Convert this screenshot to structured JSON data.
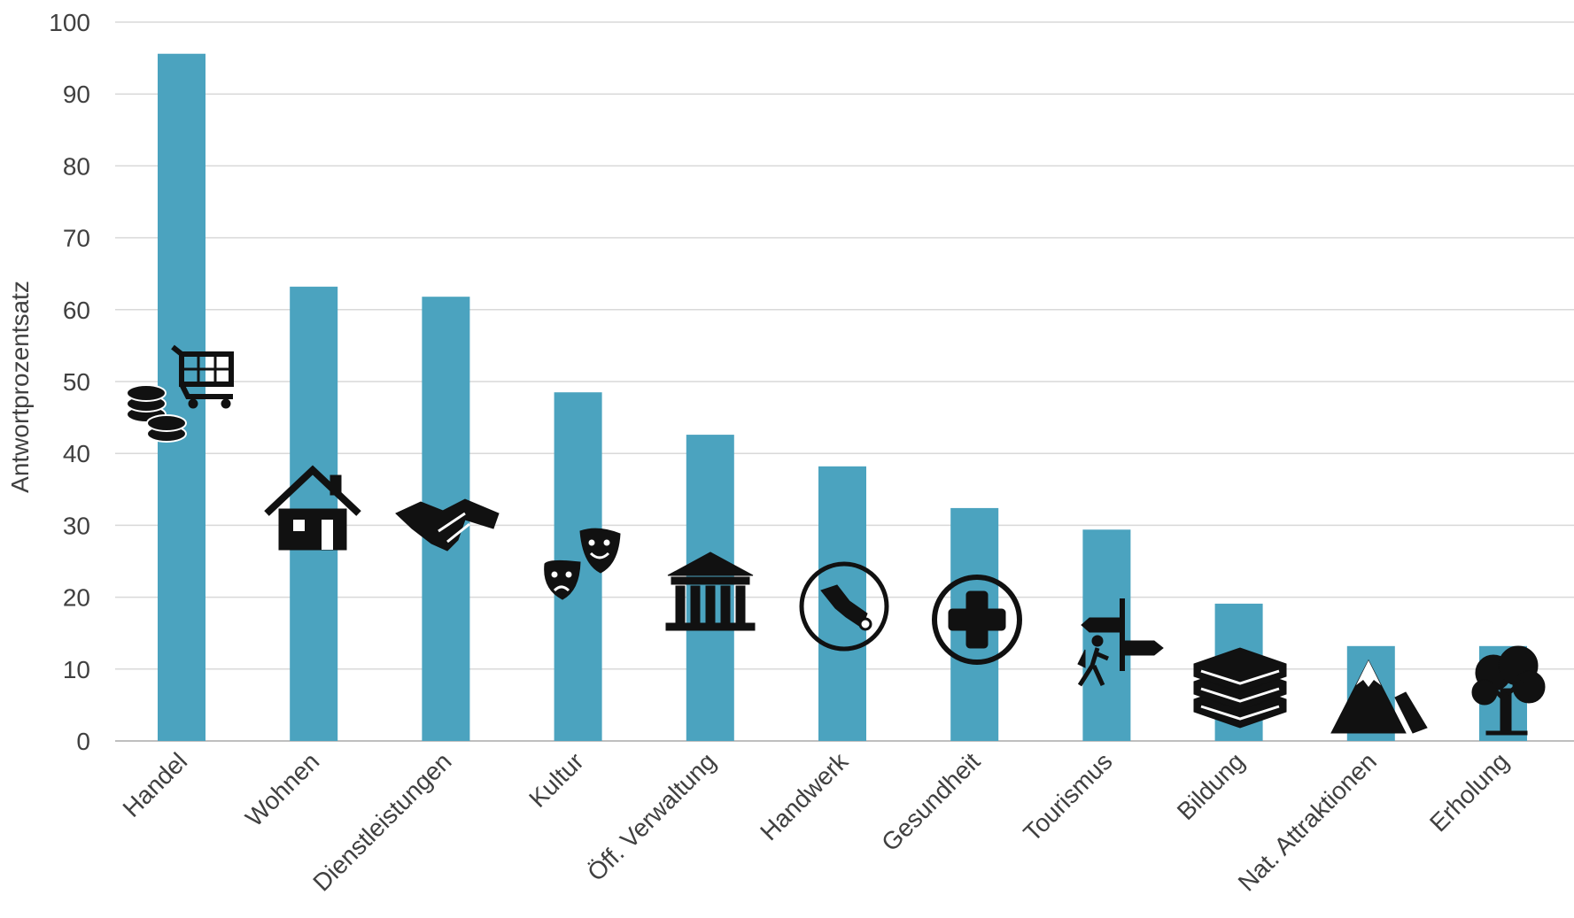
{
  "chart_data": {
    "type": "bar",
    "title": "",
    "xlabel": "",
    "ylabel": "Antwortprozentsatz",
    "ylim": [
      0,
      100
    ],
    "yticks": [
      0,
      10,
      20,
      30,
      40,
      50,
      60,
      70,
      80,
      90,
      100
    ],
    "grid": true,
    "legend": "none",
    "bar_color": "#4ba3bf",
    "categories": [
      "Handel",
      "Wohnen",
      "Dienstleistungen",
      "Kultur",
      "Öff. Verwaltung",
      "Handwerk",
      "Gesundheit",
      "Tourismus",
      "Bildung",
      "Nat. Attraktionen",
      "Erholung"
    ],
    "values": [
      95.6,
      63.2,
      61.8,
      48.5,
      42.6,
      38.2,
      32.4,
      29.4,
      19.1,
      13.2,
      13.2
    ],
    "icons": [
      "coins-and-shopping-cart-icon",
      "house-icon",
      "handshake-icon",
      "theater-masks-icon",
      "government-building-icon",
      "craftsman-tools-icon",
      "medical-cross-icon",
      "hiker-signpost-icon",
      "books-icon",
      "mountain-icon",
      "tree-icon"
    ]
  }
}
